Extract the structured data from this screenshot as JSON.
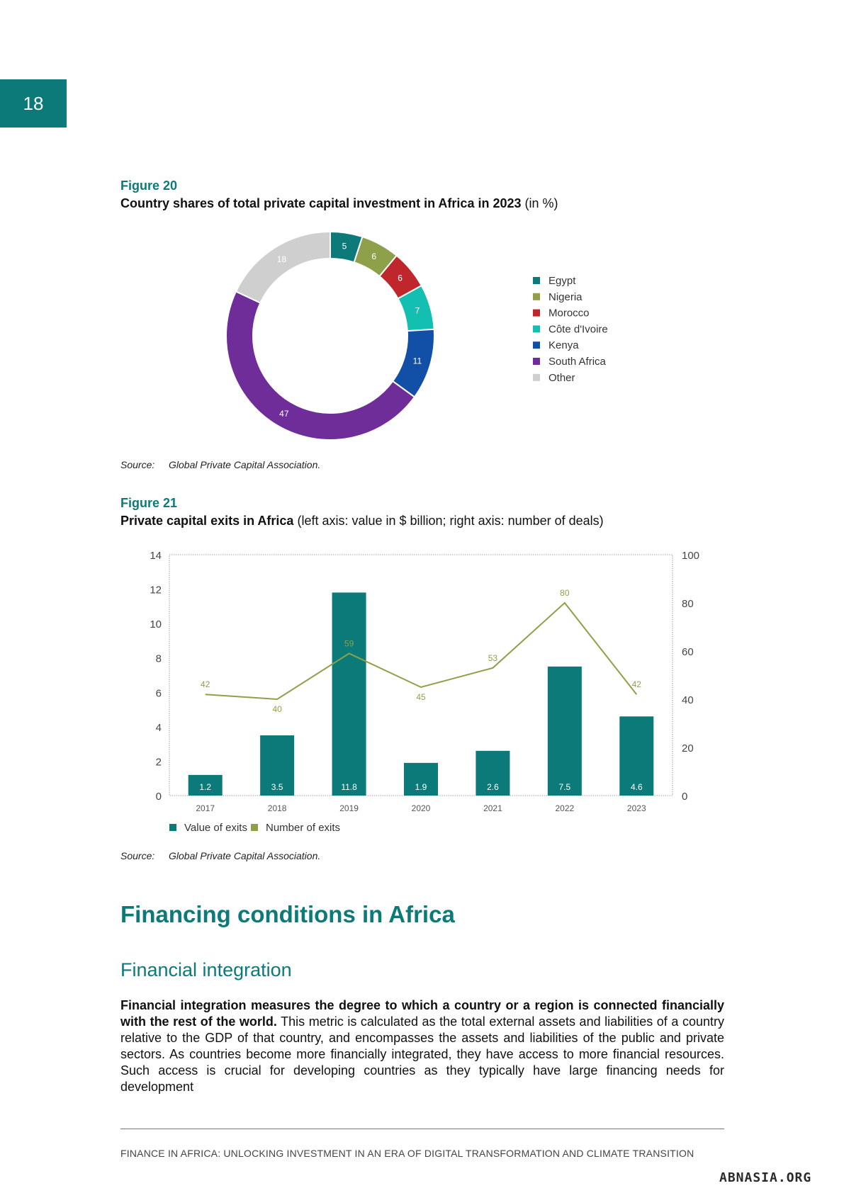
{
  "page_number": "18",
  "figure20": {
    "label": "Figure 20",
    "title_bold": "Country shares of total private capital investment in Africa in 2023",
    "title_rest": " (in %)",
    "source_label": "Source:",
    "source_text": "Global Private Capital Association."
  },
  "figure21": {
    "label": "Figure 21",
    "title_bold": "Private capital exits in Africa",
    "title_rest": " (left axis: value in $ billion; right axis: number of deals)",
    "source_label": "Source:",
    "source_text": "Global Private Capital Association."
  },
  "chart_data": [
    {
      "type": "pie",
      "donut": true,
      "categories": [
        "Egypt",
        "Nigeria",
        "Morocco",
        "Côte d'Ivoire",
        "Kenya",
        "South Africa",
        "Other"
      ],
      "values": [
        5,
        6,
        6,
        7,
        11,
        47,
        18
      ],
      "labels": [
        "5",
        "6",
        "6",
        "7",
        "11",
        "47",
        "18"
      ],
      "colors": [
        "#0b7a78",
        "#8ea04a",
        "#c0272d",
        "#12bfb1",
        "#1250a8",
        "#6f2d9a",
        "#cfcfcf"
      ],
      "legend_position": "right"
    },
    {
      "type": "bar",
      "combo": "bar+line",
      "categories": [
        "2017",
        "2018",
        "2019",
        "2020",
        "2021",
        "2022",
        "2023"
      ],
      "series": [
        {
          "name": "Value of exits",
          "type": "bar",
          "axis": "left",
          "color": "#0b7a78",
          "values": [
            1.2,
            3.5,
            11.8,
            1.9,
            2.6,
            7.5,
            4.6
          ],
          "labels": [
            "1.2",
            "3.5",
            "11.8",
            "1.9",
            "2.6",
            "7.5",
            "4.6"
          ]
        },
        {
          "name": "Number of exits",
          "type": "line",
          "axis": "right",
          "color": "#8ea04a",
          "values": [
            42,
            40,
            59,
            45,
            53,
            80,
            42
          ],
          "labels": [
            "42",
            "40",
            "59",
            "45",
            "53",
            "80",
            "42"
          ]
        }
      ],
      "ylim_left": [
        0,
        14
      ],
      "yticks_left": [
        "0",
        "2",
        "4",
        "6",
        "8",
        "10",
        "12",
        "14"
      ],
      "ylim_right": [
        0,
        100
      ],
      "yticks_right": [
        "0",
        "20",
        "40",
        "60",
        "80",
        "100"
      ],
      "legend_position": "bottom-left"
    }
  ],
  "section_heading": "Financing conditions in Africa",
  "subsection_heading": "Financial integration",
  "paragraph_bold": "Financial integration measures the degree to which a country or a region is connected financially with the rest of the world.",
  "paragraph_rest": " This metric is calculated as the total external assets and liabilities of a country relative to the GDP of that country, and encompasses the assets and liabilities of the public and private sectors. As countries become more financially integrated, they have access to more financial resources. Such access is crucial for developing countries as they typically have large financing needs for development",
  "footer": "FINANCE IN AFRICA: UNLOCKING INVESTMENT IN AN ERA OF DIGITAL TRANSFORMATION AND CLIMATE TRANSITION",
  "watermark": "ABNASIA.ORG"
}
